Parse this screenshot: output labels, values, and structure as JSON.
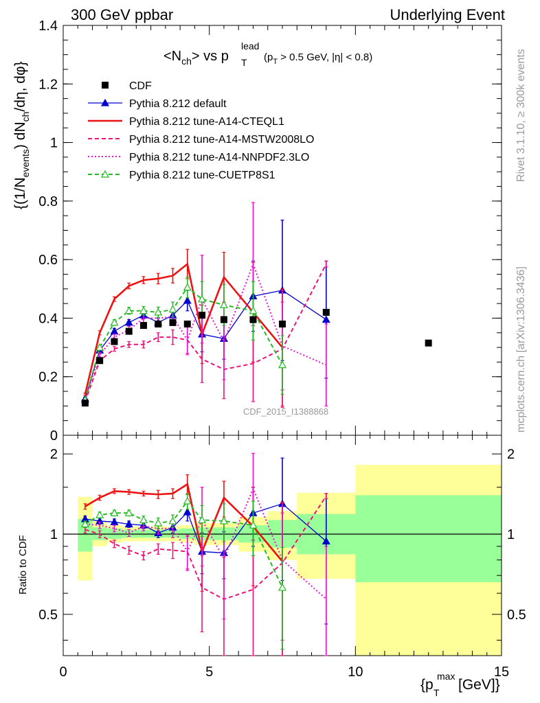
{
  "header": {
    "left": "300 GeV ppbar",
    "right": "Underlying Event"
  },
  "side_labels": {
    "rivet": "Rivet 3.1.10, ≥ 300k events",
    "mcplots": "mcplots.cern.ch [arXiv:1306.3436]"
  },
  "watermark": "CDF_2015_I1388868",
  "title": {
    "main": "<N",
    "main_sub": "ch",
    "mid": "> vs p",
    "mid_sup": "lead",
    "mid_sub": "T",
    "cut": "(p",
    "cut_sub": "T",
    "cut_rest": " > 0.5 GeV, |η| < 0.8)"
  },
  "y_axis_label": {
    "p1": "{(1/N",
    "p1_sub": "events",
    "p2": ") dN",
    "p2_sub": "ch",
    "p3": "/dη, dφ}"
  },
  "ratio_label": "Ratio to CDF",
  "x_axis_label": {
    "p1": "{p",
    "sup": "max",
    "sub": "T",
    "p2": " [GeV]}"
  },
  "legend": [
    {
      "label": "CDF",
      "color": "#000000",
      "style": "marker-square"
    },
    {
      "label": "Pythia 8.212 default",
      "color": "#0000cc",
      "style": "solid-triangle"
    },
    {
      "label": "Pythia 8.212 tune-A14-CTEQL1",
      "color": "#ee1111",
      "style": "solid-thick"
    },
    {
      "label": "Pythia 8.212 tune-A14-MSTW2008LO",
      "color": "#ee1177",
      "style": "dashed"
    },
    {
      "label": "Pythia 8.212 tune-A14-NNPDF2.3LO",
      "color": "#ee11cc",
      "style": "dotted"
    },
    {
      "label": "Pythia 8.212 tune-CUETP8S1",
      "color": "#22bb22",
      "style": "dashed-open-triangle"
    }
  ],
  "chart_data": [
    {
      "type": "line",
      "panel": "main",
      "xlim": [
        0,
        15
      ],
      "ylim": [
        0,
        1.4
      ],
      "yticks": [
        {
          "v": 0,
          "label": "0"
        },
        {
          "v": 0.2,
          "label": "0.2"
        },
        {
          "v": 0.4,
          "label": "0.4"
        },
        {
          "v": 0.6,
          "label": "0.6"
        },
        {
          "v": 0.8,
          "label": "0.8"
        },
        {
          "v": 1.0,
          "label": "1"
        },
        {
          "v": 1.2,
          "label": "1.2"
        },
        {
          "v": 1.4,
          "label": "1.4"
        }
      ],
      "data": {
        "name": "CDF",
        "x": [
          0.75,
          1.25,
          1.75,
          2.25,
          2.75,
          3.25,
          3.75,
          4.25,
          4.75,
          5.5,
          6.5,
          7.5,
          9.0,
          12.5
        ],
        "y": [
          0.11,
          0.255,
          0.32,
          0.355,
          0.375,
          0.38,
          0.385,
          0.38,
          0.41,
          0.395,
          0.395,
          0.38,
          0.42,
          0.315
        ]
      },
      "series": [
        {
          "name": "Pythia 8.212 default",
          "color": "#0000cc",
          "x": [
            0.75,
            1.25,
            1.75,
            2.25,
            2.75,
            3.25,
            3.75,
            4.25,
            4.75,
            5.5,
            6.5,
            7.5,
            9.0
          ],
          "y": [
            0.125,
            0.29,
            0.355,
            0.385,
            0.41,
            0.385,
            0.41,
            0.46,
            0.345,
            0.33,
            0.475,
            0.495,
            0.395
          ],
          "err": [
            0.005,
            0.008,
            0.01,
            0.01,
            0.012,
            0.015,
            0.02,
            0.035,
            0.06,
            0.07,
            0.12,
            0.24,
            0.2
          ]
        },
        {
          "name": "Pythia 8.212 tune-A14-CTEQL1",
          "color": "#ee1111",
          "x": [
            0.75,
            1.25,
            1.75,
            2.25,
            2.75,
            3.25,
            3.75,
            4.25,
            4.75,
            5.5,
            6.5,
            7.5
          ],
          "y": [
            0.14,
            0.35,
            0.465,
            0.51,
            0.53,
            0.535,
            0.545,
            0.585,
            0.345,
            0.54,
            0.42,
            0.3
          ],
          "err": [
            0.004,
            0.007,
            0.008,
            0.01,
            0.012,
            0.018,
            0.025,
            0.05,
            0.1,
            0.085,
            0.17,
            0.2
          ]
        },
        {
          "name": "Pythia 8.212 tune-A14-MSTW2008LO",
          "color": "#ee1177",
          "x": [
            0.75,
            1.25,
            1.75,
            2.25,
            2.75,
            3.25,
            3.75,
            4.25,
            4.75,
            5.5,
            6.5,
            7.5,
            9.0
          ],
          "y": [
            0.115,
            0.255,
            0.295,
            0.31,
            0.31,
            0.335,
            0.335,
            0.325,
            0.26,
            0.225,
            0.245,
            0.295,
            0.585
          ],
          "err": [
            0.004,
            0.006,
            0.008,
            0.01,
            0.012,
            0.015,
            0.025,
            0.045,
            0.08,
            0.1,
            0.13,
            0.2,
            0.01
          ]
        },
        {
          "name": "Pythia 8.212 tune-A14-NNPDF2.3LO",
          "color": "#ee11cc",
          "x": [
            0.75,
            1.25,
            1.75,
            2.25,
            2.75,
            3.25,
            3.75,
            4.25,
            4.75,
            5.5,
            6.5,
            7.5,
            9.0
          ],
          "y": [
            0.12,
            0.275,
            0.335,
            0.36,
            0.4,
            0.4,
            0.405,
            0.325,
            0.465,
            0.32,
            0.585,
            0.305,
            0.24
          ],
          "err": [
            0.004,
            0.007,
            0.01,
            0.012,
            0.015,
            0.02,
            0.03,
            0.05,
            0.15,
            0.13,
            0.21,
            0.15,
            0.14
          ]
        },
        {
          "name": "Pythia 8.212 tune-CUETP8S1",
          "color": "#22bb22",
          "x": [
            0.75,
            1.25,
            1.75,
            2.25,
            2.75,
            3.25,
            3.75,
            4.25,
            4.75,
            5.5,
            6.5,
            7.5
          ],
          "y": [
            0.12,
            0.3,
            0.385,
            0.425,
            0.425,
            0.42,
            0.43,
            0.505,
            0.465,
            0.445,
            0.425,
            0.24
          ],
          "err": [
            0.004,
            0.007,
            0.01,
            0.012,
            0.015,
            0.018,
            0.025,
            0.035,
            0.06,
            0.07,
            0.1,
            0.1
          ]
        }
      ]
    },
    {
      "type": "line",
      "panel": "ratio",
      "xlim": [
        0,
        15
      ],
      "ylim": [
        0.35,
        2.35
      ],
      "yscale": "log",
      "yticks": [
        {
          "v": 0.5,
          "label": "0.5"
        },
        {
          "v": 1,
          "label": "1"
        },
        {
          "v": 2,
          "label": "2"
        }
      ],
      "xticks": [
        {
          "v": 0,
          "label": "0"
        },
        {
          "v": 5,
          "label": "5"
        },
        {
          "v": 10,
          "label": "10"
        },
        {
          "v": 15,
          "label": "15"
        }
      ],
      "bands": [
        {
          "x0": 0.5,
          "x1": 1.0,
          "y1_lo": 0.86,
          "y1_hi": 1.14,
          "y2_lo": 0.67,
          "y2_hi": 1.38
        },
        {
          "x0": 1.0,
          "x1": 1.5,
          "y1_lo": 0.95,
          "y1_hi": 1.06,
          "y2_lo": 0.9,
          "y2_hi": 1.12
        },
        {
          "x0": 1.5,
          "x1": 2.0,
          "y1_lo": 0.96,
          "y1_hi": 1.05,
          "y2_lo": 0.93,
          "y2_hi": 1.08
        },
        {
          "x0": 2.0,
          "x1": 2.5,
          "y1_lo": 0.97,
          "y1_hi": 1.04,
          "y2_lo": 0.94,
          "y2_hi": 1.07
        },
        {
          "x0": 2.5,
          "x1": 3.0,
          "y1_lo": 0.97,
          "y1_hi": 1.04,
          "y2_lo": 0.94,
          "y2_hi": 1.07
        },
        {
          "x0": 3.0,
          "x1": 3.5,
          "y1_lo": 0.97,
          "y1_hi": 1.04,
          "y2_lo": 0.94,
          "y2_hi": 1.07
        },
        {
          "x0": 3.5,
          "x1": 4.0,
          "y1_lo": 0.97,
          "y1_hi": 1.04,
          "y2_lo": 0.94,
          "y2_hi": 1.07
        },
        {
          "x0": 4.0,
          "x1": 4.5,
          "y1_lo": 0.96,
          "y1_hi": 1.05,
          "y2_lo": 0.93,
          "y2_hi": 1.08
        },
        {
          "x0": 4.5,
          "x1": 5.0,
          "y1_lo": 0.95,
          "y1_hi": 1.06,
          "y2_lo": 0.91,
          "y2_hi": 1.1
        },
        {
          "x0": 5.0,
          "x1": 6.0,
          "y1_lo": 0.95,
          "y1_hi": 1.06,
          "y2_lo": 0.91,
          "y2_hi": 1.1
        },
        {
          "x0": 6.0,
          "x1": 7.0,
          "y1_lo": 0.93,
          "y1_hi": 1.08,
          "y2_lo": 0.86,
          "y2_hi": 1.16
        },
        {
          "x0": 7.0,
          "x1": 8.0,
          "y1_lo": 0.89,
          "y1_hi": 1.13,
          "y2_lo": 0.8,
          "y2_hi": 1.22
        },
        {
          "x0": 8.0,
          "x1": 10.0,
          "y1_lo": 0.84,
          "y1_hi": 1.19,
          "y2_lo": 0.68,
          "y2_hi": 1.43
        },
        {
          "x0": 10.0,
          "x1": 15.0,
          "y1_lo": 0.66,
          "y1_hi": 1.4,
          "y2_lo": 0.35,
          "y2_hi": 1.82
        }
      ],
      "series": [
        {
          "name": "Pythia 8.212 default",
          "color": "#0000cc",
          "x": [
            0.75,
            1.25,
            1.75,
            2.25,
            2.75,
            3.25,
            3.75,
            4.25,
            4.75,
            5.5,
            6.5,
            7.5,
            9.0
          ],
          "y": [
            1.14,
            1.12,
            1.11,
            1.09,
            1.08,
            1.01,
            1.06,
            1.21,
            0.86,
            0.85,
            1.2,
            1.3,
            0.94
          ],
          "err": [
            0.03,
            0.03,
            0.03,
            0.03,
            0.03,
            0.04,
            0.05,
            0.09,
            0.15,
            0.17,
            0.3,
            0.63,
            0.48
          ]
        },
        {
          "name": "Pythia 8.212 tune-A14-CTEQL1",
          "color": "#ee1111",
          "x": [
            0.75,
            1.25,
            1.75,
            2.25,
            2.75,
            3.25,
            3.75,
            4.25,
            4.75,
            5.5,
            6.5,
            7.5
          ],
          "y": [
            1.27,
            1.37,
            1.45,
            1.44,
            1.42,
            1.41,
            1.42,
            1.54,
            0.86,
            1.37,
            1.07,
            0.79
          ],
          "err": [
            0.03,
            0.03,
            0.03,
            0.03,
            0.03,
            0.05,
            0.06,
            0.13,
            0.25,
            0.21,
            0.43,
            0.53
          ]
        },
        {
          "name": "Pythia 8.212 tune-A14-MSTW2008LO",
          "color": "#ee1177",
          "x": [
            0.75,
            1.25,
            1.75,
            2.25,
            2.75,
            3.25,
            3.75,
            4.25,
            4.75,
            5.5,
            6.5,
            7.5,
            9.0
          ],
          "y": [
            1.04,
            1.0,
            0.92,
            0.87,
            0.83,
            0.88,
            0.87,
            0.86,
            0.63,
            0.57,
            0.62,
            0.78,
            1.39
          ],
          "err": [
            0.03,
            0.03,
            0.03,
            0.03,
            0.03,
            0.04,
            0.06,
            0.12,
            0.2,
            0.25,
            0.33,
            0.53,
            0.03
          ]
        },
        {
          "name": "Pythia 8.212 tune-A14-NNPDF2.3LO",
          "color": "#ee11cc",
          "x": [
            0.75,
            1.25,
            1.75,
            2.25,
            2.75,
            3.25,
            3.75,
            4.25,
            4.75,
            5.5,
            6.5,
            7.5,
            9.0
          ],
          "y": [
            1.09,
            1.08,
            1.05,
            1.01,
            1.07,
            1.05,
            1.05,
            0.86,
            1.13,
            0.81,
            1.48,
            0.8,
            0.57
          ],
          "err": [
            0.03,
            0.03,
            0.03,
            0.03,
            0.04,
            0.05,
            0.08,
            0.13,
            0.37,
            0.33,
            0.53,
            0.4,
            0.33
          ]
        },
        {
          "name": "Pythia 8.212 tune-CUETP8S1",
          "color": "#22bb22",
          "x": [
            0.75,
            1.25,
            1.75,
            2.25,
            2.75,
            3.25,
            3.75,
            4.25,
            4.75,
            5.5,
            6.5,
            7.5
          ],
          "y": [
            1.09,
            1.18,
            1.2,
            1.2,
            1.13,
            1.1,
            1.12,
            1.33,
            1.13,
            1.12,
            1.08,
            0.63
          ],
          "err": [
            0.03,
            0.03,
            0.03,
            0.03,
            0.04,
            0.05,
            0.06,
            0.09,
            0.15,
            0.18,
            0.25,
            0.26
          ]
        }
      ]
    }
  ]
}
